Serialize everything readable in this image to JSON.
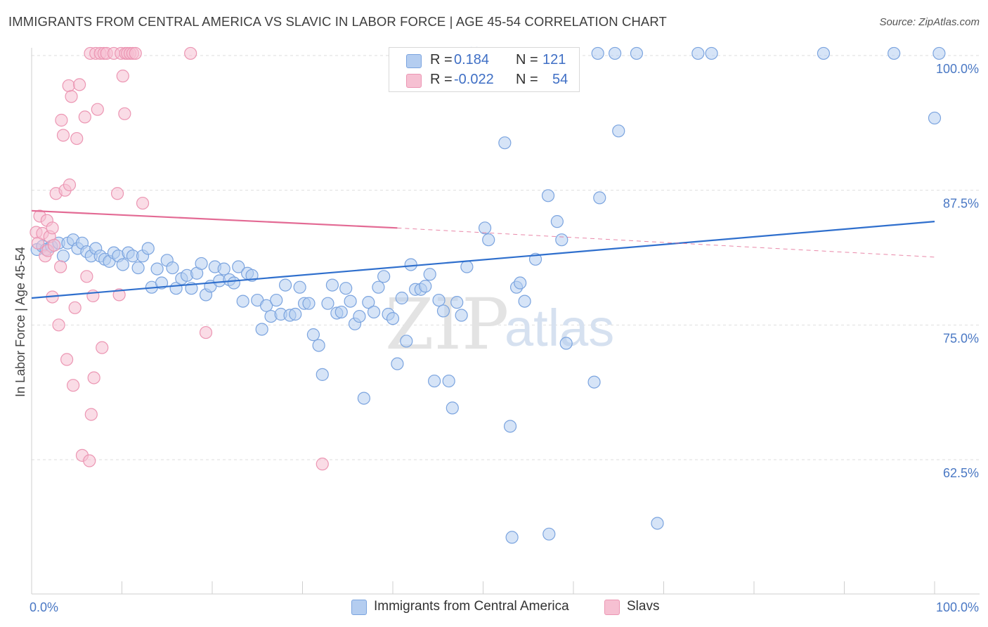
{
  "title": "IMMIGRANTS FROM CENTRAL AMERICA VS SLAVIC IN LABOR FORCE | AGE 45-54 CORRELATION CHART",
  "source": "Source: ZipAtlas.com",
  "watermark": {
    "zip": "ZIP",
    "atlas": "atlas"
  },
  "legend_top": {
    "r_label": "R =",
    "n_label": "N =",
    "rows": [
      {
        "r": "0.184",
        "n": "121"
      },
      {
        "r": "-0.022",
        "n": "54"
      }
    ]
  },
  "chart_data": {
    "type": "scatter",
    "title": "IMMIGRANTS FROM CENTRAL AMERICA VS SLAVIC IN LABOR FORCE | AGE 45-54 CORRELATION CHART",
    "xlabel": "",
    "ylabel": "In Labor Force | Age 45-54",
    "xlim": [
      0,
      100
    ],
    "ylim": [
      50.5,
      101.5
    ],
    "x_tick_labels": [
      "0.0%",
      "100.0%"
    ],
    "y_ticks": [
      62.5,
      75.0,
      87.5,
      100.0
    ],
    "y_tick_labels": [
      "62.5%",
      "75.0%",
      "87.5%",
      "100.0%"
    ],
    "grid": "horizontal dashed",
    "legend_position": "top-center and bottom",
    "colors": {
      "central_america_fill": "#b4cdf0",
      "central_america_stroke": "#7ba4df",
      "central_america_line": "#2f6fcd",
      "slavic_fill": "#f6c0d2",
      "slavic_stroke": "#ec96b3",
      "slavic_line": "#e36a94"
    },
    "series": [
      {
        "name": "Immigrants from Central America",
        "r": 0.184,
        "n": 121,
        "trend": {
          "x": [
            0,
            100
          ],
          "y": [
            77.5,
            84.6
          ]
        },
        "points": [
          [
            0.6,
            82.0
          ],
          [
            1.2,
            82.3
          ],
          [
            1.6,
            82.0
          ],
          [
            2.2,
            82.3
          ],
          [
            3.0,
            82.6
          ],
          [
            3.5,
            81.4
          ],
          [
            4.0,
            82.6
          ],
          [
            4.6,
            82.9
          ],
          [
            5.1,
            82.1
          ],
          [
            5.6,
            82.6
          ],
          [
            6.1,
            81.8
          ],
          [
            6.6,
            81.4
          ],
          [
            7.1,
            82.1
          ],
          [
            7.6,
            81.4
          ],
          [
            8.1,
            81.1
          ],
          [
            8.6,
            80.9
          ],
          [
            9.1,
            81.7
          ],
          [
            9.6,
            81.4
          ],
          [
            10.1,
            80.6
          ],
          [
            10.7,
            81.7
          ],
          [
            11.2,
            81.4
          ],
          [
            11.8,
            80.3
          ],
          [
            12.3,
            81.4
          ],
          [
            12.9,
            82.1
          ],
          [
            13.3,
            78.5
          ],
          [
            13.9,
            80.2
          ],
          [
            14.4,
            78.9
          ],
          [
            15.0,
            81.0
          ],
          [
            15.6,
            80.3
          ],
          [
            16.0,
            78.4
          ],
          [
            16.6,
            79.3
          ],
          [
            17.2,
            79.6
          ],
          [
            17.7,
            78.4
          ],
          [
            18.3,
            79.8
          ],
          [
            18.8,
            80.7
          ],
          [
            19.3,
            77.8
          ],
          [
            19.8,
            78.6
          ],
          [
            20.3,
            80.4
          ],
          [
            20.8,
            79.1
          ],
          [
            21.3,
            80.2
          ],
          [
            21.9,
            79.2
          ],
          [
            22.4,
            78.9
          ],
          [
            22.9,
            80.4
          ],
          [
            23.4,
            77.2
          ],
          [
            23.9,
            79.8
          ],
          [
            24.4,
            79.6
          ],
          [
            25.0,
            77.3
          ],
          [
            25.5,
            74.6
          ],
          [
            26.0,
            76.8
          ],
          [
            26.5,
            75.8
          ],
          [
            27.1,
            77.3
          ],
          [
            27.6,
            76.0
          ],
          [
            28.1,
            78.7
          ],
          [
            28.6,
            75.9
          ],
          [
            29.2,
            76.0
          ],
          [
            29.7,
            78.5
          ],
          [
            30.2,
            77.0
          ],
          [
            30.7,
            77.0
          ],
          [
            31.2,
            74.1
          ],
          [
            31.8,
            73.1
          ],
          [
            32.2,
            70.4
          ],
          [
            32.8,
            77.0
          ],
          [
            33.3,
            78.7
          ],
          [
            33.8,
            76.1
          ],
          [
            34.3,
            76.2
          ],
          [
            34.8,
            78.4
          ],
          [
            35.3,
            77.2
          ],
          [
            35.8,
            75.1
          ],
          [
            36.3,
            75.8
          ],
          [
            36.8,
            68.2
          ],
          [
            37.3,
            77.1
          ],
          [
            37.9,
            76.2
          ],
          [
            38.4,
            78.5
          ],
          [
            39.0,
            79.5
          ],
          [
            39.5,
            76.0
          ],
          [
            40.0,
            75.6
          ],
          [
            40.5,
            71.4
          ],
          [
            41.0,
            77.5
          ],
          [
            41.5,
            73.5
          ],
          [
            42.0,
            80.6
          ],
          [
            42.5,
            78.3
          ],
          [
            43.1,
            78.3
          ],
          [
            43.6,
            78.6
          ],
          [
            44.1,
            79.7
          ],
          [
            44.6,
            69.8
          ],
          [
            45.1,
            77.3
          ],
          [
            45.6,
            76.3
          ],
          [
            46.2,
            69.8
          ],
          [
            46.6,
            67.3
          ],
          [
            47.1,
            77.1
          ],
          [
            47.6,
            75.9
          ],
          [
            48.2,
            80.4
          ],
          [
            48.7,
            100.2
          ],
          [
            49.3,
            100.2
          ],
          [
            50.2,
            84.0
          ],
          [
            50.6,
            82.9
          ],
          [
            52.4,
            91.9
          ],
          [
            53.0,
            65.6
          ],
          [
            53.2,
            55.3
          ],
          [
            53.7,
            78.5
          ],
          [
            54.1,
            78.9
          ],
          [
            54.6,
            77.2
          ],
          [
            55.8,
            81.1
          ],
          [
            57.2,
            87.0
          ],
          [
            57.3,
            55.6
          ],
          [
            58.2,
            84.6
          ],
          [
            58.7,
            82.9
          ],
          [
            59.2,
            73.3
          ],
          [
            62.3,
            69.7
          ],
          [
            62.9,
            86.8
          ],
          [
            64.6,
            100.2
          ],
          [
            65.0,
            93.0
          ],
          [
            62.7,
            100.2
          ],
          [
            67.0,
            100.2
          ],
          [
            69.3,
            56.6
          ],
          [
            73.8,
            100.2
          ],
          [
            75.3,
            100.2
          ],
          [
            87.7,
            100.2
          ],
          [
            95.5,
            100.2
          ],
          [
            100.0,
            94.2
          ],
          [
            100.5,
            100.2
          ]
        ]
      },
      {
        "name": "Slavs",
        "r": -0.022,
        "n": 54,
        "trend": {
          "x": [
            0,
            40.5
          ],
          "y": [
            85.6,
            84.0
          ],
          "dashed_to": {
            "x": 100,
            "y": 81.3
          }
        },
        "points": [
          [
            0.5,
            83.6
          ],
          [
            0.7,
            82.6
          ],
          [
            0.9,
            85.1
          ],
          [
            1.2,
            83.5
          ],
          [
            1.5,
            81.4
          ],
          [
            1.7,
            84.7
          ],
          [
            1.8,
            81.9
          ],
          [
            2.0,
            83.2
          ],
          [
            2.3,
            84.0
          ],
          [
            2.5,
            82.4
          ],
          [
            2.3,
            77.6
          ],
          [
            2.7,
            87.2
          ],
          [
            3.0,
            75.0
          ],
          [
            3.2,
            80.4
          ],
          [
            3.3,
            94.0
          ],
          [
            3.5,
            92.6
          ],
          [
            3.7,
            87.5
          ],
          [
            3.9,
            71.8
          ],
          [
            4.1,
            97.2
          ],
          [
            4.2,
            88.0
          ],
          [
            4.4,
            96.2
          ],
          [
            4.6,
            69.4
          ],
          [
            4.8,
            76.6
          ],
          [
            5.0,
            92.3
          ],
          [
            5.3,
            97.3
          ],
          [
            5.6,
            62.9
          ],
          [
            5.9,
            94.3
          ],
          [
            6.1,
            79.5
          ],
          [
            6.4,
            62.4
          ],
          [
            6.5,
            100.2
          ],
          [
            6.6,
            66.7
          ],
          [
            6.8,
            77.7
          ],
          [
            6.9,
            70.1
          ],
          [
            7.1,
            100.2
          ],
          [
            7.3,
            95.0
          ],
          [
            7.6,
            100.2
          ],
          [
            7.8,
            72.9
          ],
          [
            8.0,
            100.2
          ],
          [
            8.3,
            100.2
          ],
          [
            9.1,
            100.2
          ],
          [
            9.5,
            87.2
          ],
          [
            9.7,
            77.8
          ],
          [
            9.9,
            100.2
          ],
          [
            10.1,
            98.1
          ],
          [
            10.3,
            94.6
          ],
          [
            10.4,
            100.2
          ],
          [
            10.6,
            100.2
          ],
          [
            10.9,
            100.2
          ],
          [
            11.2,
            100.2
          ],
          [
            11.5,
            100.2
          ],
          [
            12.3,
            86.3
          ],
          [
            17.6,
            100.2
          ],
          [
            19.3,
            74.3
          ],
          [
            32.2,
            62.1
          ]
        ]
      }
    ]
  },
  "legend_bottom": [
    {
      "label": "Immigrants from Central America"
    },
    {
      "label": "Slavs"
    }
  ]
}
